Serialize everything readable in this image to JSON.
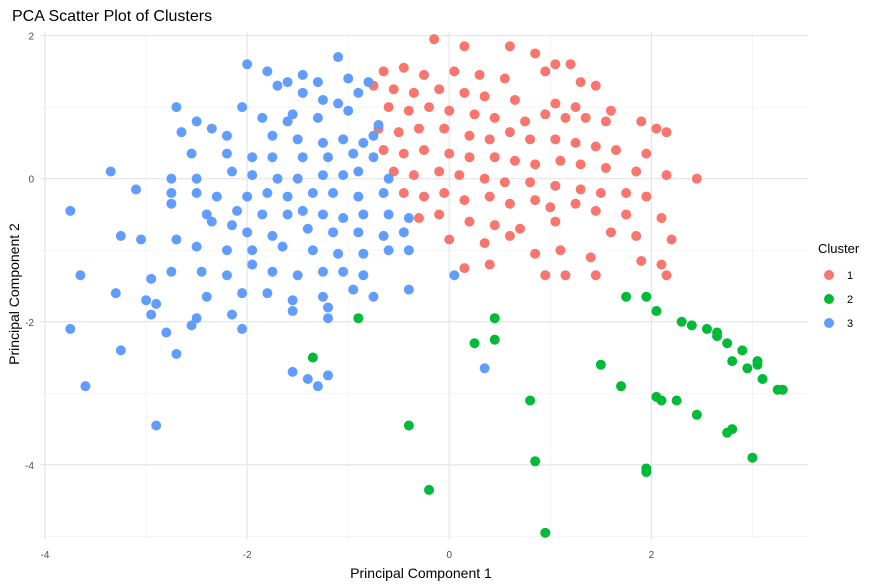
{
  "chart_data": {
    "type": "scatter",
    "title": "PCA Scatter Plot of Clusters",
    "xlabel": "Principal Component 1",
    "ylabel": "Principal Component 2",
    "xlim": [
      -4.05,
      3.55
    ],
    "ylim": [
      -5.05,
      2.05
    ],
    "x_ticks": [
      -4,
      -2,
      0,
      2
    ],
    "y_ticks": [
      2,
      0,
      -2,
      -4
    ],
    "grid": true,
    "legend": {
      "title": "Cluster",
      "placement": "right"
    },
    "series": [
      {
        "name": "1",
        "color": "#F8766D",
        "points": [
          [
            -0.15,
            1.95
          ],
          [
            0.15,
            1.85
          ],
          [
            0.6,
            1.85
          ],
          [
            0.85,
            1.75
          ],
          [
            1.2,
            1.6
          ],
          [
            1.05,
            1.6
          ],
          [
            -0.65,
            1.5
          ],
          [
            -0.45,
            1.55
          ],
          [
            -0.25,
            1.45
          ],
          [
            0.05,
            1.5
          ],
          [
            0.3,
            1.45
          ],
          [
            0.55,
            1.4
          ],
          [
            0.95,
            1.5
          ],
          [
            1.3,
            1.35
          ],
          [
            1.45,
            1.3
          ],
          [
            -0.75,
            1.3
          ],
          [
            -0.55,
            1.25
          ],
          [
            -0.35,
            1.2
          ],
          [
            -0.1,
            1.25
          ],
          [
            0.15,
            1.2
          ],
          [
            0.35,
            1.15
          ],
          [
            0.65,
            1.1
          ],
          [
            1.05,
            1.05
          ],
          [
            1.25,
            1.0
          ],
          [
            1.6,
            0.95
          ],
          [
            -0.6,
            1.0
          ],
          [
            -0.4,
            0.95
          ],
          [
            -0.2,
            1.0
          ],
          [
            0.0,
            0.95
          ],
          [
            0.25,
            0.9
          ],
          [
            0.45,
            0.85
          ],
          [
            0.75,
            0.8
          ],
          [
            0.95,
            0.9
          ],
          [
            1.15,
            0.85
          ],
          [
            1.35,
            0.85
          ],
          [
            1.55,
            0.8
          ],
          [
            1.9,
            0.8
          ],
          [
            2.05,
            0.7
          ],
          [
            2.15,
            0.65
          ],
          [
            -0.7,
            0.7
          ],
          [
            -0.5,
            0.65
          ],
          [
            -0.3,
            0.7
          ],
          [
            -0.05,
            0.7
          ],
          [
            0.2,
            0.6
          ],
          [
            0.4,
            0.55
          ],
          [
            0.6,
            0.65
          ],
          [
            0.8,
            0.55
          ],
          [
            1.05,
            0.55
          ],
          [
            1.25,
            0.5
          ],
          [
            1.45,
            0.45
          ],
          [
            1.65,
            0.4
          ],
          [
            1.95,
            0.35
          ],
          [
            -0.65,
            0.4
          ],
          [
            -0.45,
            0.35
          ],
          [
            -0.25,
            0.4
          ],
          [
            0.0,
            0.35
          ],
          [
            0.2,
            0.3
          ],
          [
            0.45,
            0.3
          ],
          [
            0.65,
            0.25
          ],
          [
            0.85,
            0.2
          ],
          [
            1.1,
            0.25
          ],
          [
            1.3,
            0.2
          ],
          [
            1.55,
            0.15
          ],
          [
            1.85,
            0.1
          ],
          [
            2.15,
            0.05
          ],
          [
            2.45,
            0.0
          ],
          [
            -0.55,
            0.1
          ],
          [
            -0.35,
            0.05
          ],
          [
            -0.1,
            0.1
          ],
          [
            0.1,
            0.05
          ],
          [
            0.35,
            0.0
          ],
          [
            0.55,
            -0.05
          ],
          [
            0.8,
            -0.05
          ],
          [
            1.05,
            -0.1
          ],
          [
            1.3,
            -0.15
          ],
          [
            1.5,
            -0.2
          ],
          [
            1.75,
            -0.2
          ],
          [
            1.95,
            -0.25
          ],
          [
            -0.45,
            -0.2
          ],
          [
            -0.25,
            -0.25
          ],
          [
            -0.05,
            -0.2
          ],
          [
            0.15,
            -0.3
          ],
          [
            0.4,
            -0.25
          ],
          [
            0.6,
            -0.35
          ],
          [
            0.85,
            -0.3
          ],
          [
            1.0,
            -0.4
          ],
          [
            1.25,
            -0.35
          ],
          [
            1.45,
            -0.45
          ],
          [
            1.75,
            -0.5
          ],
          [
            2.1,
            -0.55
          ],
          [
            -0.3,
            -0.55
          ],
          [
            -0.1,
            -0.5
          ],
          [
            0.2,
            -0.6
          ],
          [
            0.45,
            -0.65
          ],
          [
            0.7,
            -0.7
          ],
          [
            1.05,
            -0.6
          ],
          [
            1.6,
            -0.75
          ],
          [
            1.85,
            -0.8
          ],
          [
            2.2,
            -0.85
          ],
          [
            0.0,
            -0.85
          ],
          [
            0.35,
            -0.9
          ],
          [
            0.6,
            -0.8
          ],
          [
            0.85,
            -1.05
          ],
          [
            1.1,
            -1.0
          ],
          [
            1.4,
            -1.1
          ],
          [
            1.9,
            -1.15
          ],
          [
            2.1,
            -1.2
          ],
          [
            0.4,
            -1.2
          ],
          [
            0.95,
            -1.35
          ],
          [
            1.15,
            -1.35
          ],
          [
            1.45,
            -1.35
          ],
          [
            2.15,
            -1.35
          ],
          [
            0.15,
            -1.25
          ]
        ]
      },
      {
        "name": "2",
        "color": "#00BA38",
        "points": [
          [
            1.95,
            -1.65
          ],
          [
            2.05,
            -1.85
          ],
          [
            1.75,
            -1.65
          ],
          [
            2.3,
            -2.0
          ],
          [
            2.4,
            -2.05
          ],
          [
            2.55,
            -2.1
          ],
          [
            2.65,
            -2.2
          ],
          [
            2.75,
            -2.3
          ],
          [
            2.9,
            -2.4
          ],
          [
            3.05,
            -2.55
          ],
          [
            3.05,
            -2.6
          ],
          [
            2.8,
            -2.55
          ],
          [
            2.95,
            -2.65
          ],
          [
            3.1,
            -2.8
          ],
          [
            3.25,
            -2.95
          ],
          [
            3.3,
            -2.95
          ],
          [
            2.65,
            -2.15
          ],
          [
            0.45,
            -1.95
          ],
          [
            0.45,
            -2.25
          ],
          [
            0.25,
            -2.3
          ],
          [
            -0.9,
            -1.95
          ],
          [
            -1.35,
            -2.5
          ],
          [
            1.5,
            -2.6
          ],
          [
            1.7,
            -2.9
          ],
          [
            2.05,
            -3.05
          ],
          [
            2.1,
            -3.1
          ],
          [
            2.25,
            -3.1
          ],
          [
            2.45,
            -3.3
          ],
          [
            0.8,
            -3.1
          ],
          [
            2.75,
            -3.55
          ],
          [
            2.8,
            -3.5
          ],
          [
            3.0,
            -3.9
          ],
          [
            0.85,
            -3.95
          ],
          [
            1.95,
            -4.05
          ],
          [
            1.95,
            -4.1
          ],
          [
            -0.4,
            -3.45
          ],
          [
            -0.2,
            -4.35
          ],
          [
            0.95,
            -4.95
          ]
        ]
      },
      {
        "name": "3",
        "color": "#619CFF",
        "points": [
          [
            -1.1,
            1.7
          ],
          [
            -2.0,
            1.6
          ],
          [
            -1.8,
            1.5
          ],
          [
            -1.45,
            1.45
          ],
          [
            -1.6,
            1.35
          ],
          [
            -1.7,
            1.3
          ],
          [
            -1.3,
            1.35
          ],
          [
            -1.0,
            1.4
          ],
          [
            -0.8,
            1.35
          ],
          [
            -0.9,
            1.2
          ],
          [
            -1.45,
            1.2
          ],
          [
            -1.25,
            1.1
          ],
          [
            -1.1,
            1.05
          ],
          [
            -2.7,
            1.0
          ],
          [
            -2.05,
            1.0
          ],
          [
            -1.55,
            0.9
          ],
          [
            -1.3,
            0.85
          ],
          [
            -1.0,
            0.95
          ],
          [
            -1.85,
            0.85
          ],
          [
            -1.6,
            0.8
          ],
          [
            -2.5,
            0.8
          ],
          [
            -2.65,
            0.65
          ],
          [
            -2.35,
            0.7
          ],
          [
            -2.2,
            0.6
          ],
          [
            -1.75,
            0.6
          ],
          [
            -1.5,
            0.55
          ],
          [
            -1.25,
            0.5
          ],
          [
            -1.05,
            0.55
          ],
          [
            -0.85,
            0.5
          ],
          [
            -0.75,
            0.6
          ],
          [
            -0.7,
            0.75
          ],
          [
            -2.55,
            0.35
          ],
          [
            -2.2,
            0.35
          ],
          [
            -1.95,
            0.3
          ],
          [
            -1.75,
            0.3
          ],
          [
            -1.45,
            0.3
          ],
          [
            -1.2,
            0.3
          ],
          [
            -0.95,
            0.35
          ],
          [
            -0.75,
            0.3
          ],
          [
            -3.35,
            0.1
          ],
          [
            -2.75,
            0.0
          ],
          [
            -2.5,
            0.0
          ],
          [
            -2.15,
            0.1
          ],
          [
            -1.95,
            0.05
          ],
          [
            -1.7,
            0.0
          ],
          [
            -1.5,
            0.0
          ],
          [
            -1.25,
            0.05
          ],
          [
            -1.05,
            0.05
          ],
          [
            -0.9,
            0.1
          ],
          [
            -0.6,
            0.0
          ],
          [
            -3.1,
            -0.15
          ],
          [
            -2.75,
            -0.2
          ],
          [
            -2.5,
            -0.2
          ],
          [
            -2.3,
            -0.25
          ],
          [
            -2.0,
            -0.25
          ],
          [
            -1.8,
            -0.2
          ],
          [
            -1.6,
            -0.25
          ],
          [
            -1.35,
            -0.2
          ],
          [
            -1.15,
            -0.2
          ],
          [
            -0.9,
            -0.25
          ],
          [
            -0.65,
            -0.2
          ],
          [
            -3.75,
            -0.45
          ],
          [
            -2.75,
            -0.35
          ],
          [
            -2.4,
            -0.5
          ],
          [
            -2.1,
            -0.45
          ],
          [
            -1.85,
            -0.5
          ],
          [
            -1.6,
            -0.5
          ],
          [
            -1.45,
            -0.45
          ],
          [
            -1.25,
            -0.5
          ],
          [
            -1.05,
            -0.55
          ],
          [
            -0.85,
            -0.5
          ],
          [
            -0.6,
            -0.5
          ],
          [
            -0.4,
            -0.55
          ],
          [
            -2.35,
            -0.6
          ],
          [
            -2.15,
            -0.65
          ],
          [
            -2.0,
            -0.75
          ],
          [
            -1.75,
            -0.8
          ],
          [
            -1.4,
            -0.7
          ],
          [
            -1.15,
            -0.75
          ],
          [
            -0.9,
            -0.75
          ],
          [
            -0.65,
            -0.8
          ],
          [
            -0.45,
            -0.75
          ],
          [
            -3.25,
            -0.8
          ],
          [
            -3.05,
            -0.85
          ],
          [
            -2.7,
            -0.85
          ],
          [
            -2.5,
            -0.95
          ],
          [
            -2.2,
            -1.0
          ],
          [
            -1.95,
            -1.0
          ],
          [
            -1.65,
            -0.95
          ],
          [
            -1.35,
            -1.0
          ],
          [
            -1.1,
            -1.05
          ],
          [
            -0.85,
            -1.05
          ],
          [
            -0.6,
            -1.0
          ],
          [
            -0.4,
            -1.0
          ],
          [
            -3.65,
            -1.35
          ],
          [
            -2.95,
            -1.4
          ],
          [
            -2.75,
            -1.3
          ],
          [
            -2.45,
            -1.3
          ],
          [
            -2.2,
            -1.35
          ],
          [
            -1.95,
            -1.2
          ],
          [
            -1.75,
            -1.3
          ],
          [
            -1.5,
            -1.35
          ],
          [
            -1.25,
            -1.3
          ],
          [
            -1.05,
            -1.3
          ],
          [
            -0.85,
            -1.35
          ],
          [
            -3.3,
            -1.6
          ],
          [
            -3.0,
            -1.7
          ],
          [
            -2.4,
            -1.65
          ],
          [
            -2.05,
            -1.6
          ],
          [
            -1.8,
            -1.6
          ],
          [
            -1.55,
            -1.7
          ],
          [
            -1.25,
            -1.65
          ],
          [
            -0.95,
            -1.55
          ],
          [
            -0.75,
            -1.65
          ],
          [
            -0.4,
            -1.55
          ],
          [
            -2.9,
            -1.75
          ],
          [
            -2.95,
            -1.9
          ],
          [
            -2.5,
            -1.95
          ],
          [
            -2.15,
            -1.9
          ],
          [
            -1.55,
            -1.85
          ],
          [
            -1.2,
            -1.8
          ],
          [
            -1.2,
            -1.95
          ],
          [
            -2.05,
            -2.1
          ],
          [
            -2.55,
            -2.05
          ],
          [
            -2.8,
            -2.15
          ],
          [
            -3.75,
            -2.1
          ],
          [
            -3.25,
            -2.4
          ],
          [
            -2.7,
            -2.45
          ],
          [
            -1.55,
            -2.7
          ],
          [
            -1.4,
            -2.8
          ],
          [
            -1.3,
            -2.9
          ],
          [
            -1.2,
            -2.75
          ],
          [
            -3.6,
            -2.9
          ],
          [
            -2.9,
            -3.45
          ],
          [
            0.35,
            -2.65
          ],
          [
            0.05,
            -1.35
          ]
        ]
      }
    ]
  }
}
